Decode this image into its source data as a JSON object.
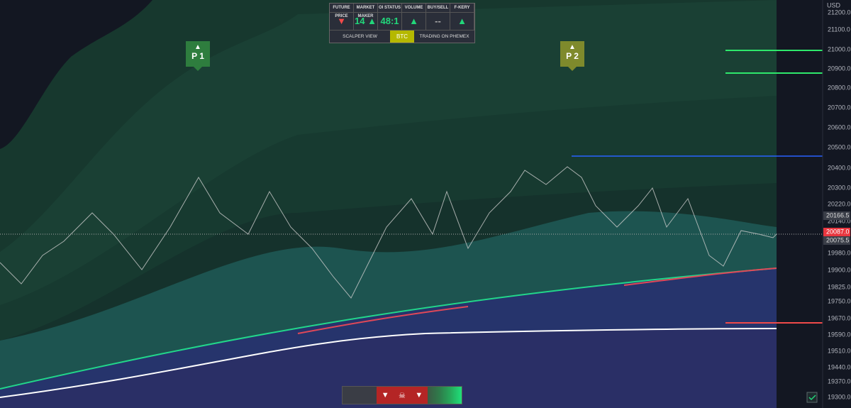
{
  "header_table": {
    "headers": [
      "FUTURE PRICE",
      "MARKET MAKER",
      "OI STATUS",
      "VOLUME",
      "BUY/SELL",
      "F-KERY"
    ],
    "values": [
      "▼",
      "14 ▲",
      "48:1",
      "▲",
      "--",
      "▲"
    ],
    "footer": [
      "SCALPER VIEW",
      "BTC",
      "TRADING ON PHEMEX"
    ]
  },
  "markers": [
    {
      "label": "P 1"
    },
    {
      "label": "P 2"
    }
  ],
  "price_axis": {
    "currency": "USD",
    "labels": [
      "21200.0",
      "21100.0",
      "21000.0",
      "20900.0",
      "20800.0",
      "20700.0",
      "20600.0",
      "20500.0",
      "20400.0",
      "20300.0",
      "20220.0",
      "20140.0",
      "19980.0",
      "19900.0",
      "19825.0",
      "19750.0",
      "19670.0",
      "19590.0",
      "19510.0",
      "19440.0",
      "19370.0",
      "19300.0"
    ],
    "highlights": [
      "20166.5",
      "20087.0",
      "20075.5"
    ]
  }
}
